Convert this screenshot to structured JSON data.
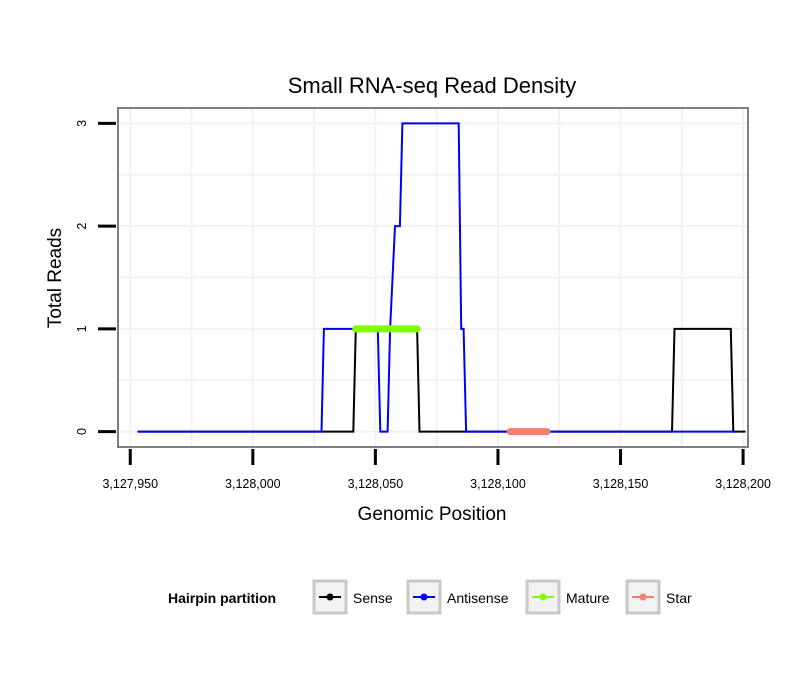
{
  "chart_data": {
    "type": "line",
    "title": "Small RNA-seq Read Density",
    "xlabel": "Genomic Position",
    "ylabel": "Total Reads",
    "xlim": [
      3127945,
      3128202
    ],
    "ylim": [
      -0.15,
      3.15
    ],
    "x_ticks": [
      3127950,
      3128000,
      3128050,
      3128100,
      3128150,
      3128200
    ],
    "x_tick_labels": [
      "3,127,950",
      "3,128,000",
      "3,128,050",
      "3,128,100",
      "3,128,150",
      "3,128,200"
    ],
    "y_ticks": [
      0,
      1,
      2,
      3
    ],
    "y_tick_labels": [
      "0",
      "1",
      "2",
      "3"
    ],
    "grid": true,
    "legend": {
      "title": "Hairpin partition",
      "position": "bottom",
      "entries": [
        {
          "name": "Sense",
          "color": "#000000"
        },
        {
          "name": "Antisense",
          "color": "#0000ff"
        },
        {
          "name": "Mature",
          "color": "#7fff00"
        },
        {
          "name": "Star",
          "color": "#f08070"
        }
      ]
    },
    "series": [
      {
        "name": "Sense",
        "color": "#000000",
        "x": [
          3127953,
          3128041,
          3128042,
          3128067,
          3128068,
          3128171,
          3128172,
          3128195,
          3128196,
          3128201
        ],
        "y": [
          0,
          0,
          1,
          1,
          0,
          0,
          1,
          1,
          0,
          0
        ]
      },
      {
        "name": "Antisense",
        "color": "#0000ff",
        "x": [
          3127953,
          3128028,
          3128029,
          3128051,
          3128052,
          3128055,
          3128056,
          3128058,
          3128059,
          3128060,
          3128061,
          3128084,
          3128085,
          3128086,
          3128087,
          3128170,
          3128197
        ],
        "y": [
          0,
          0,
          1,
          1,
          0,
          0,
          1,
          2,
          2,
          2,
          3,
          3,
          1,
          1,
          0,
          0,
          0
        ]
      },
      {
        "name": "Mature",
        "color": "#7fff00",
        "x": [
          3128042,
          3128067
        ],
        "y": [
          1,
          1
        ]
      },
      {
        "name": "Star",
        "color": "#f08070",
        "x": [
          3128105,
          3128120
        ],
        "y": [
          0,
          0
        ]
      }
    ]
  }
}
